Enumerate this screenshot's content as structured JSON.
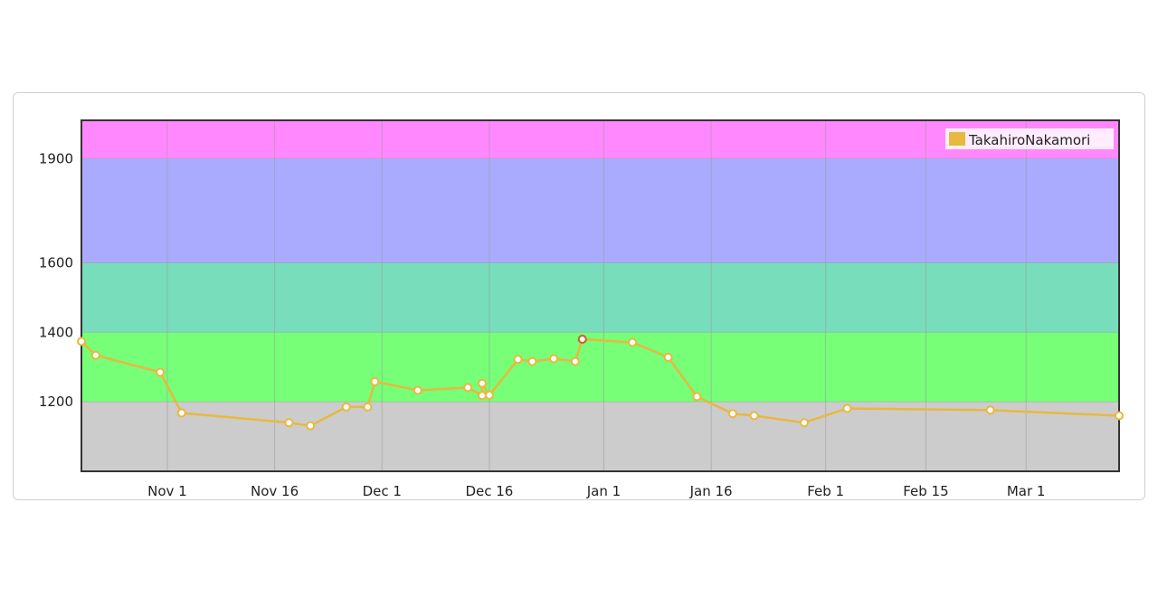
{
  "chart_data": {
    "type": "line",
    "title": "",
    "xlabel": "",
    "ylabel": "",
    "x_ticks": [
      {
        "label": "Nov 1",
        "date": "2016-11-01"
      },
      {
        "label": "Nov 16",
        "date": "2016-11-16"
      },
      {
        "label": "Dec 1",
        "date": "2016-12-01"
      },
      {
        "label": "Dec 16",
        "date": "2016-12-16"
      },
      {
        "label": "Jan 1",
        "date": "2017-01-01"
      },
      {
        "label": "Jan 16",
        "date": "2017-01-16"
      },
      {
        "label": "Feb 1",
        "date": "2017-02-01"
      },
      {
        "label": "Feb 15",
        "date": "2017-02-15"
      },
      {
        "label": "Mar 1",
        "date": "2017-03-01"
      }
    ],
    "y_ticks": [
      1200,
      1400,
      1600,
      1900
    ],
    "xlim": [
      "2016-10-20",
      "2017-03-14"
    ],
    "ylim": [
      1000,
      2010
    ],
    "grid": true,
    "bands": [
      {
        "from": 1000,
        "to": 1200,
        "color": "#cccccc"
      },
      {
        "from": 1200,
        "to": 1400,
        "color": "#77ff77"
      },
      {
        "from": 1400,
        "to": 1600,
        "color": "#77ddbb"
      },
      {
        "from": 1600,
        "to": 1900,
        "color": "#aaaaff"
      },
      {
        "from": 1900,
        "to": 2010,
        "color": "#ff88ff"
      }
    ],
    "legend": {
      "position": "top-right"
    },
    "series": [
      {
        "name": "TakahiroNakamori",
        "color": "#e8b840",
        "points": [
          {
            "x": "2016-10-20",
            "y": 1374
          },
          {
            "x": "2016-10-22",
            "y": 1334
          },
          {
            "x": "2016-10-31",
            "y": 1285
          },
          {
            "x": "2016-11-03",
            "y": 1168
          },
          {
            "x": "2016-11-18",
            "y": 1140
          },
          {
            "x": "2016-11-21",
            "y": 1131
          },
          {
            "x": "2016-11-26",
            "y": 1185
          },
          {
            "x": "2016-11-29",
            "y": 1185
          },
          {
            "x": "2016-11-30",
            "y": 1258
          },
          {
            "x": "2016-12-06",
            "y": 1233
          },
          {
            "x": "2016-12-13",
            "y": 1241
          },
          {
            "x": "2016-12-15",
            "y": 1218
          },
          {
            "x": "2016-12-15",
            "y": 1253
          },
          {
            "x": "2016-12-16",
            "y": 1219
          },
          {
            "x": "2016-12-20",
            "y": 1322
          },
          {
            "x": "2016-12-22",
            "y": 1316
          },
          {
            "x": "2016-12-25",
            "y": 1324
          },
          {
            "x": "2016-12-28",
            "y": 1316
          },
          {
            "x": "2016-12-29",
            "y": 1380
          },
          {
            "x": "2017-01-05",
            "y": 1371
          },
          {
            "x": "2017-01-10",
            "y": 1328
          },
          {
            "x": "2017-01-14",
            "y": 1215
          },
          {
            "x": "2017-01-19",
            "y": 1166
          },
          {
            "x": "2017-01-22",
            "y": 1160
          },
          {
            "x": "2017-01-29",
            "y": 1140
          },
          {
            "x": "2017-02-04",
            "y": 1181
          },
          {
            "x": "2017-02-24",
            "y": 1176
          },
          {
            "x": "2017-03-14",
            "y": 1160
          }
        ]
      }
    ]
  }
}
